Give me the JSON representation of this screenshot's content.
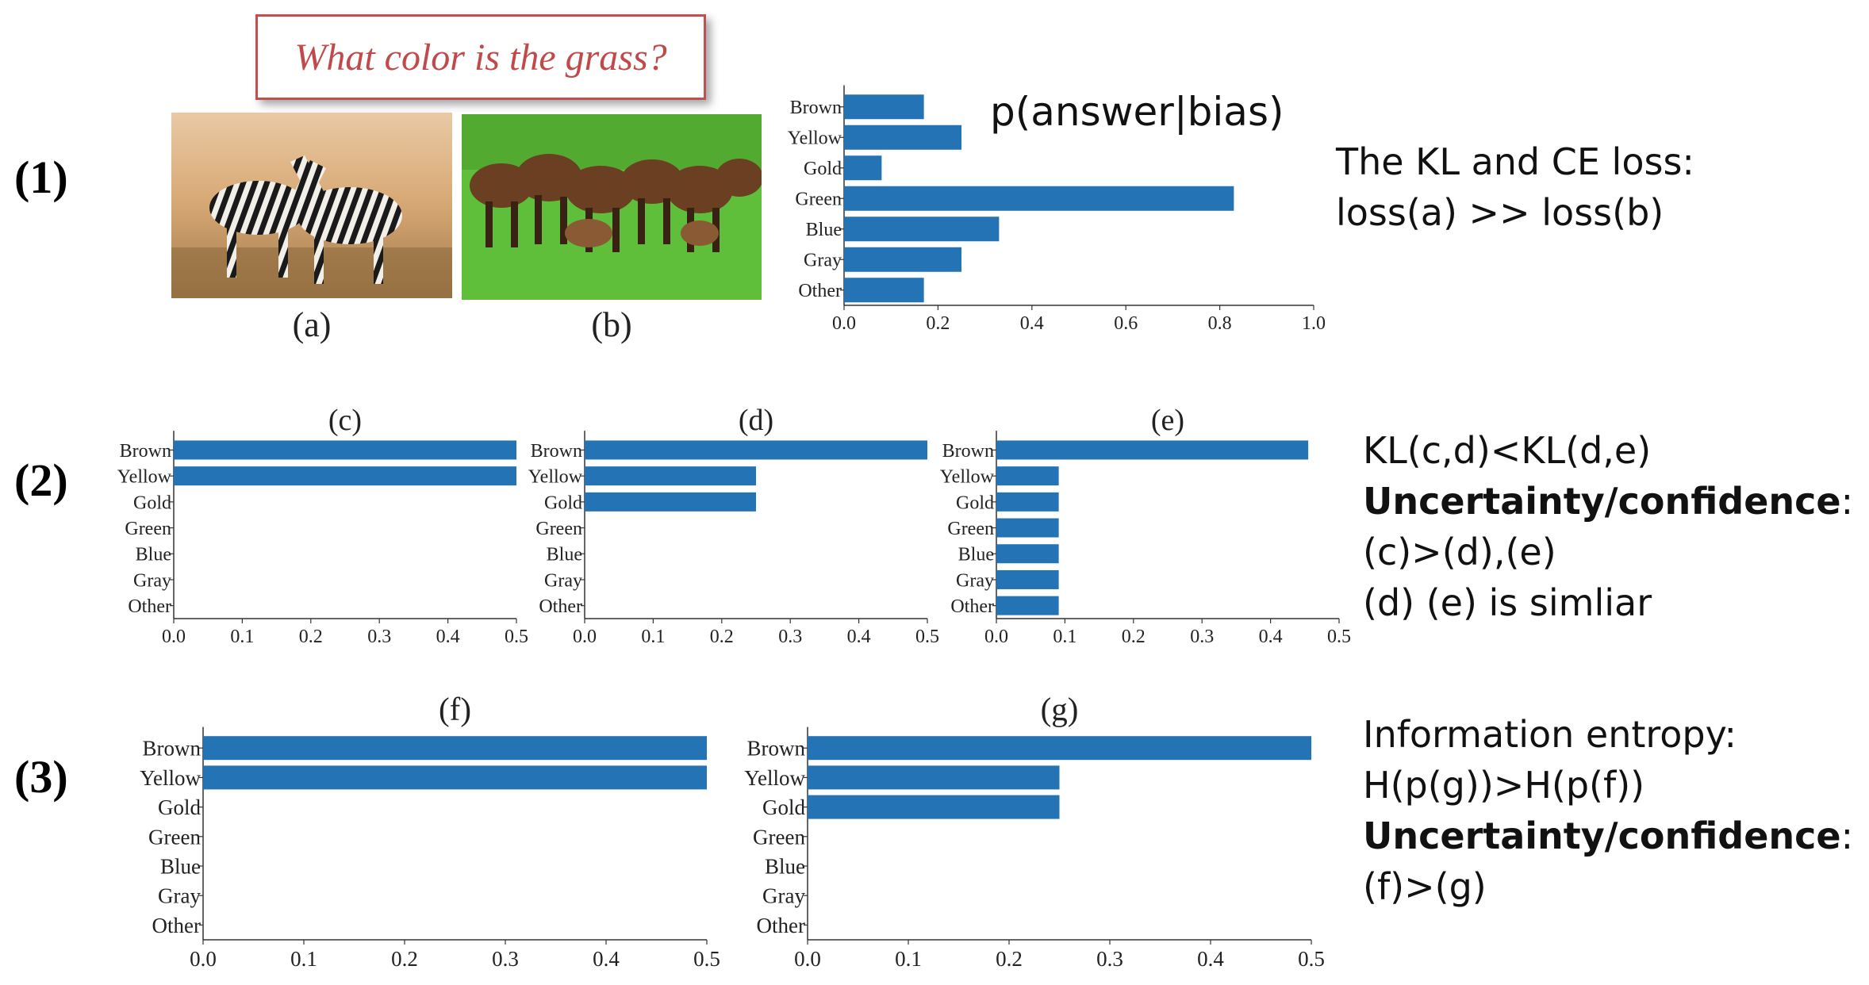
{
  "row_labels": [
    "(1)",
    "(2)",
    "(3)"
  ],
  "question": "What color is the grass?",
  "images": [
    {
      "caption": "(a)",
      "subject": "zebras on dry brown grass"
    },
    {
      "caption": "(b)",
      "subject": "horses on green grass"
    }
  ],
  "formula_label": "p(answer|bias)",
  "text_blocks": {
    "row1": [
      "The KL and CE loss:",
      "loss(a) >> loss(b)"
    ],
    "row2": [
      {
        "parts": [
          {
            "text": "KL(c,d)<KL(d,e)",
            "bold": false
          }
        ]
      },
      {
        "parts": [
          {
            "text": "Uncertainty/confidence",
            "bold": true
          },
          {
            "text": ":",
            "bold": false
          }
        ]
      },
      {
        "parts": [
          {
            "text": "(c)>(d),(e)",
            "bold": false
          }
        ]
      },
      {
        "parts": [
          {
            "text": "(d) (e) is simliar",
            "bold": false
          }
        ]
      }
    ],
    "row3": [
      {
        "parts": [
          {
            "text": "Information entropy:",
            "bold": false
          }
        ]
      },
      {
        "parts": [
          {
            "text": "H(p(g))>H(p(f))",
            "bold": false
          }
        ]
      },
      {
        "parts": [
          {
            "text": "Uncertainty/confidence",
            "bold": true
          },
          {
            "text": ":",
            "bold": false
          }
        ]
      },
      {
        "parts": [
          {
            "text": "(f)>(g)",
            "bold": false
          }
        ]
      }
    ]
  },
  "colors": {
    "bar": "#2473b5",
    "question_border": "#c05050",
    "question_text": "#c04a4a"
  },
  "chart_data": [
    {
      "id": "bias",
      "type": "bar",
      "orientation": "horizontal",
      "title": "",
      "categories": [
        "Brown",
        "Yellow",
        "Gold",
        "Green",
        "Blue",
        "Gray",
        "Other"
      ],
      "values": [
        0.17,
        0.25,
        0.08,
        0.83,
        0.33,
        0.25,
        0.17
      ],
      "xlim": [
        0,
        1.0
      ],
      "xticks": [
        "0.0",
        "0.2",
        "0.4",
        "0.6",
        "0.8",
        "1.0"
      ],
      "tickvals": [
        0,
        0.2,
        0.4,
        0.6,
        0.8,
        1.0
      ]
    },
    {
      "id": "c",
      "type": "bar",
      "orientation": "horizontal",
      "title": "(c)",
      "categories": [
        "Brown",
        "Yellow",
        "Gold",
        "Green",
        "Blue",
        "Gray",
        "Other"
      ],
      "values": [
        0.5,
        0.5,
        0,
        0,
        0,
        0,
        0
      ],
      "xlim": [
        0,
        0.5
      ],
      "xticks": [
        "0.0",
        "0.1",
        "0.2",
        "0.3",
        "0.4",
        "0.5"
      ],
      "tickvals": [
        0,
        0.1,
        0.2,
        0.3,
        0.4,
        0.5
      ]
    },
    {
      "id": "d",
      "type": "bar",
      "orientation": "horizontal",
      "title": "(d)",
      "categories": [
        "Brown",
        "Yellow",
        "Gold",
        "Green",
        "Blue",
        "Gray",
        "Other"
      ],
      "values": [
        0.5,
        0.25,
        0.25,
        0,
        0,
        0,
        0
      ],
      "xlim": [
        0,
        0.5
      ],
      "xticks": [
        "0.0",
        "0.1",
        "0.2",
        "0.3",
        "0.4",
        "0.5"
      ],
      "tickvals": [
        0,
        0.1,
        0.2,
        0.3,
        0.4,
        0.5
      ]
    },
    {
      "id": "e",
      "type": "bar",
      "orientation": "horizontal",
      "title": "(e)",
      "categories": [
        "Brown",
        "Yellow",
        "Gold",
        "Green",
        "Blue",
        "Gray",
        "Other"
      ],
      "values": [
        0.455,
        0.091,
        0.091,
        0.091,
        0.091,
        0.091,
        0.091
      ],
      "xlim": [
        0,
        0.5
      ],
      "xticks": [
        "0.0",
        "0.1",
        "0.2",
        "0.3",
        "0.4",
        "0.5"
      ],
      "tickvals": [
        0,
        0.1,
        0.2,
        0.3,
        0.4,
        0.5
      ]
    },
    {
      "id": "f",
      "type": "bar",
      "orientation": "horizontal",
      "title": "(f)",
      "categories": [
        "Brown",
        "Yellow",
        "Gold",
        "Green",
        "Blue",
        "Gray",
        "Other"
      ],
      "values": [
        0.5,
        0.5,
        0,
        0,
        0,
        0,
        0
      ],
      "xlim": [
        0,
        0.5
      ],
      "xticks": [
        "0.0",
        "0.1",
        "0.2",
        "0.3",
        "0.4",
        "0.5"
      ],
      "tickvals": [
        0,
        0.1,
        0.2,
        0.3,
        0.4,
        0.5
      ]
    },
    {
      "id": "g",
      "type": "bar",
      "orientation": "horizontal",
      "title": "(g)",
      "categories": [
        "Brown",
        "Yellow",
        "Gold",
        "Green",
        "Blue",
        "Gray",
        "Other"
      ],
      "values": [
        0.5,
        0.25,
        0.25,
        0,
        0,
        0,
        0
      ],
      "xlim": [
        0,
        0.5
      ],
      "xticks": [
        "0.0",
        "0.1",
        "0.2",
        "0.3",
        "0.4",
        "0.5"
      ],
      "tickvals": [
        0,
        0.1,
        0.2,
        0.3,
        0.4,
        0.5
      ]
    }
  ]
}
